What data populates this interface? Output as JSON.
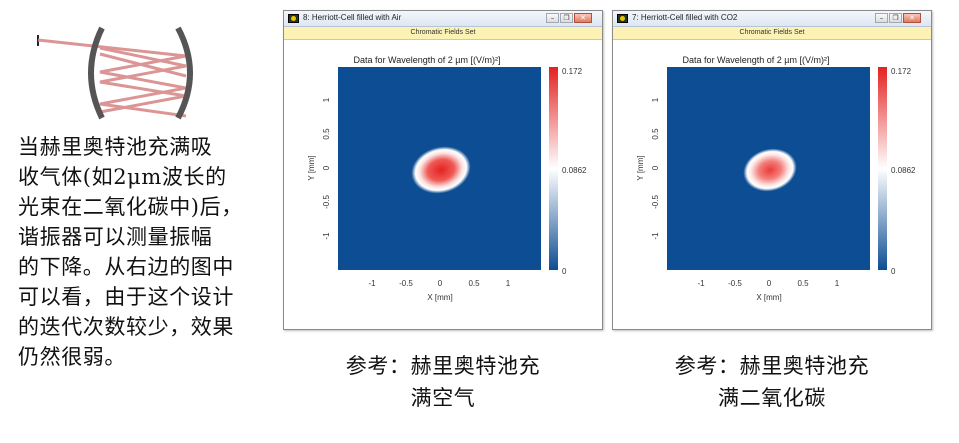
{
  "description_lines": [
    "当赫里奥特池充满吸",
    "收气体(如2μm波长的",
    "光束在二氧化碳中)后，",
    "谐振器可以测量振幅",
    "的下降。从右边的图中",
    "可以看，由于这个设计",
    "的迭代次数较少，效果",
    "仍然很弱。"
  ],
  "windows": [
    {
      "title": "8: Herriott-Cell filled with Air",
      "subtitle": "Chromatic Fields Set",
      "plot_title": "Data for Wavelength of 2 µm  [(V/m)²]",
      "colorbar_max": "0.172",
      "colorbar_mid": "0.0862",
      "colorbar_min": "0",
      "xlabel": "X [mm]",
      "ylabel": "Y [mm]",
      "spot_peak_fraction": 1.0,
      "caption_lines": [
        "参考：赫里奥特池充",
        "满空气"
      ]
    },
    {
      "title": "7: Herriott-Cell filled with CO2",
      "subtitle": "Chromatic Fields Set",
      "plot_title": "Data for Wavelength of 2 µm  [(V/m)²]",
      "colorbar_max": "0.172",
      "colorbar_mid": "0.0862",
      "colorbar_min": "0",
      "xlabel": "X [mm]",
      "ylabel": "Y [mm]",
      "spot_peak_fraction": 0.78,
      "caption_lines": [
        "参考：赫里奥特池充",
        "满二氧化碳"
      ]
    }
  ],
  "chart_data": {
    "type": "heatmap",
    "x_ticks": [
      "-1",
      "-0.5",
      "0",
      "0.5",
      "1"
    ],
    "y_ticks": [
      "1",
      "0.5",
      "0",
      "-0.5",
      "-1"
    ],
    "xlim": [
      -1.5,
      1.5
    ],
    "ylim": [
      -1.5,
      1.5
    ],
    "colorscale": [
      "#0d4d93",
      "#ffffff",
      "#e32220"
    ],
    "colors": {
      "background": "#0d4d93",
      "peak": "#e32220",
      "mid": "#ffffff"
    }
  }
}
